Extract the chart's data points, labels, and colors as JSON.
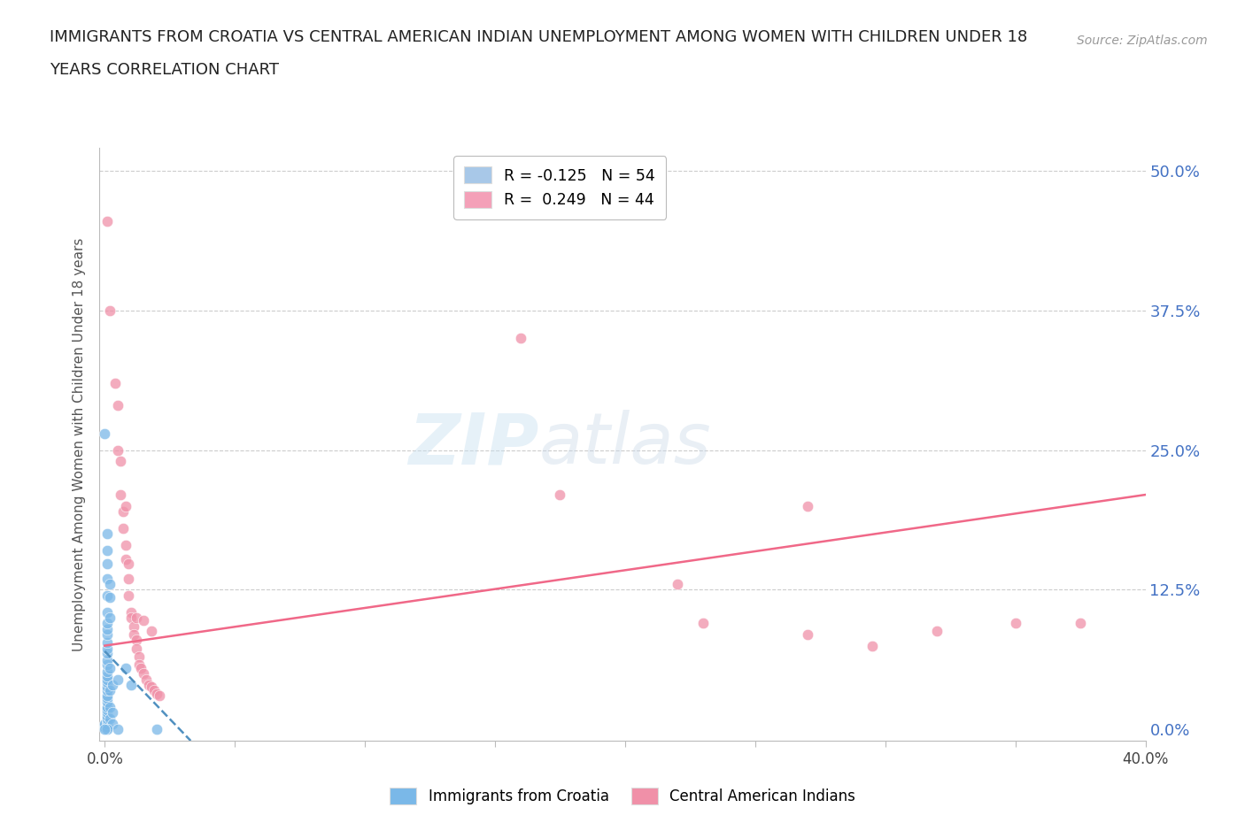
{
  "title_line1": "IMMIGRANTS FROM CROATIA VS CENTRAL AMERICAN INDIAN UNEMPLOYMENT AMONG WOMEN WITH CHILDREN UNDER 18",
  "title_line2": "YEARS CORRELATION CHART",
  "source": "Source: ZipAtlas.com",
  "ylabel": "Unemployment Among Women with Children Under 18 years",
  "ytick_labels": [
    "50.0%",
    "37.5%",
    "25.0%",
    "12.5%",
    "0.0%"
  ],
  "ytick_values": [
    0.5,
    0.375,
    0.25,
    0.125,
    0.0
  ],
  "xtick_labels": [
    "0.0%",
    "",
    "",
    "",
    "",
    "",
    "",
    "",
    "40.0%"
  ],
  "xtick_values": [
    0.0,
    0.05,
    0.1,
    0.15,
    0.2,
    0.25,
    0.3,
    0.35,
    0.4
  ],
  "xlim": [
    -0.002,
    0.4
  ],
  "ylim": [
    -0.01,
    0.52
  ],
  "legend_entries": [
    {
      "label": "R = -0.125   N = 54",
      "color": "#a8c8e8"
    },
    {
      "label": "R =  0.249   N = 44",
      "color": "#f4a0b8"
    }
  ],
  "watermark": "ZIPatlas",
  "croatia_color": "#7ab8e8",
  "central_color": "#f090a8",
  "croatia_trend_color": "#5090c0",
  "central_trend_color": "#f06888",
  "background_color": "#ffffff",
  "croatia_points": [
    [
      0.0,
      0.002
    ],
    [
      0.0,
      0.003
    ],
    [
      0.0,
      0.004
    ],
    [
      0.0,
      0.005
    ],
    [
      0.001,
      0.002
    ],
    [
      0.001,
      0.003
    ],
    [
      0.001,
      0.005
    ],
    [
      0.001,
      0.008
    ],
    [
      0.001,
      0.01
    ],
    [
      0.001,
      0.012
    ],
    [
      0.001,
      0.015
    ],
    [
      0.001,
      0.018
    ],
    [
      0.001,
      0.02
    ],
    [
      0.001,
      0.025
    ],
    [
      0.001,
      0.028
    ],
    [
      0.001,
      0.03
    ],
    [
      0.001,
      0.035
    ],
    [
      0.001,
      0.038
    ],
    [
      0.001,
      0.042
    ],
    [
      0.001,
      0.045
    ],
    [
      0.001,
      0.048
    ],
    [
      0.001,
      0.052
    ],
    [
      0.001,
      0.058
    ],
    [
      0.001,
      0.062
    ],
    [
      0.001,
      0.068
    ],
    [
      0.001,
      0.072
    ],
    [
      0.001,
      0.078
    ],
    [
      0.001,
      0.085
    ],
    [
      0.001,
      0.09
    ],
    [
      0.001,
      0.095
    ],
    [
      0.001,
      0.105
    ],
    [
      0.001,
      0.12
    ],
    [
      0.001,
      0.135
    ],
    [
      0.001,
      0.148
    ],
    [
      0.001,
      0.16
    ],
    [
      0.001,
      0.175
    ],
    [
      0.002,
      0.01
    ],
    [
      0.002,
      0.02
    ],
    [
      0.002,
      0.035
    ],
    [
      0.002,
      0.055
    ],
    [
      0.002,
      0.1
    ],
    [
      0.002,
      0.118
    ],
    [
      0.002,
      0.13
    ],
    [
      0.003,
      0.005
    ],
    [
      0.003,
      0.015
    ],
    [
      0.003,
      0.04
    ],
    [
      0.005,
      0.0
    ],
    [
      0.005,
      0.045
    ],
    [
      0.008,
      0.055
    ],
    [
      0.01,
      0.04
    ],
    [
      0.0,
      0.265
    ],
    [
      0.02,
      0.0
    ],
    [
      0.001,
      0.0
    ],
    [
      0.0,
      0.0
    ]
  ],
  "central_points": [
    [
      0.001,
      0.455
    ],
    [
      0.002,
      0.375
    ],
    [
      0.004,
      0.31
    ],
    [
      0.005,
      0.25
    ],
    [
      0.006,
      0.24
    ],
    [
      0.006,
      0.21
    ],
    [
      0.007,
      0.195
    ],
    [
      0.007,
      0.18
    ],
    [
      0.008,
      0.165
    ],
    [
      0.008,
      0.152
    ],
    [
      0.009,
      0.135
    ],
    [
      0.009,
      0.12
    ],
    [
      0.01,
      0.105
    ],
    [
      0.01,
      0.1
    ],
    [
      0.011,
      0.092
    ],
    [
      0.011,
      0.085
    ],
    [
      0.012,
      0.08
    ],
    [
      0.012,
      0.072
    ],
    [
      0.013,
      0.065
    ],
    [
      0.013,
      0.058
    ],
    [
      0.014,
      0.055
    ],
    [
      0.015,
      0.05
    ],
    [
      0.016,
      0.045
    ],
    [
      0.017,
      0.04
    ],
    [
      0.018,
      0.038
    ],
    [
      0.019,
      0.035
    ],
    [
      0.02,
      0.032
    ],
    [
      0.021,
      0.03
    ],
    [
      0.005,
      0.29
    ],
    [
      0.008,
      0.2
    ],
    [
      0.009,
      0.148
    ],
    [
      0.012,
      0.1
    ],
    [
      0.015,
      0.098
    ],
    [
      0.018,
      0.088
    ],
    [
      0.16,
      0.35
    ],
    [
      0.175,
      0.21
    ],
    [
      0.22,
      0.13
    ],
    [
      0.23,
      0.095
    ],
    [
      0.27,
      0.085
    ],
    [
      0.295,
      0.075
    ],
    [
      0.32,
      0.088
    ],
    [
      0.35,
      0.095
    ],
    [
      0.375,
      0.095
    ],
    [
      0.27,
      0.2
    ]
  ],
  "croatia_trend": {
    "x_start": 0.0,
    "x_end": 0.033,
    "y_start": 0.07,
    "y_end": -0.01
  },
  "central_trend": {
    "x_start": 0.0,
    "x_end": 0.4,
    "y_start": 0.075,
    "y_end": 0.21
  }
}
